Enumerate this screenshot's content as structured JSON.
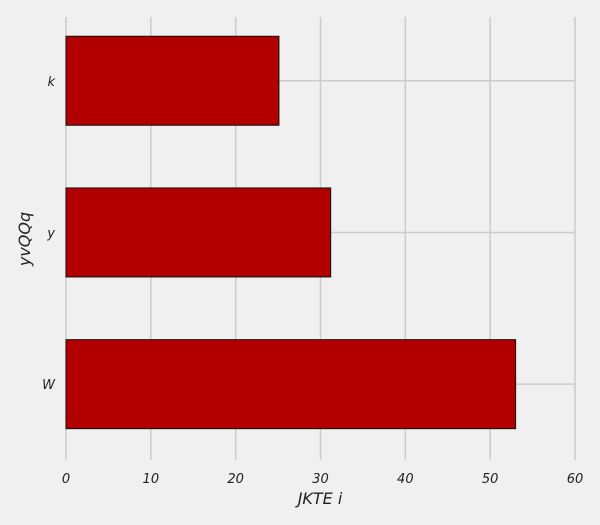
{
  "chart_data": {
    "type": "bar",
    "orientation": "horizontal",
    "title": "",
    "categories": [
      "W",
      "y",
      "k"
    ],
    "values": [
      53,
      31.2,
      25.1
    ],
    "xlabel": "JKTE i",
    "ylabel": "yvQQq",
    "xlim": [
      0,
      60
    ],
    "xticks": [
      0,
      10,
      20,
      30,
      40,
      50,
      60
    ],
    "grid": true,
    "colors": {
      "bar": "#b20000",
      "background": "#f0f0f0",
      "grid": "#cbcbcb"
    }
  }
}
